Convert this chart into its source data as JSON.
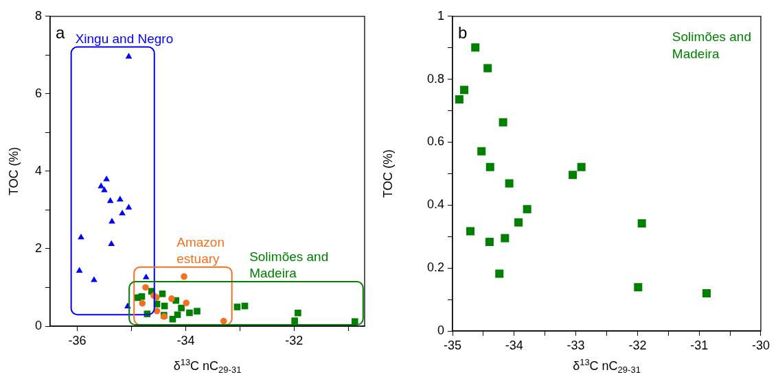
{
  "chart_data": [
    {
      "type": "scatter",
      "title": "a",
      "xlabel": "δ$^{13}$C nC$_{29-31}$",
      "ylabel": "TOC (%)",
      "xlim": [
        -36.5,
        -30.7
      ],
      "xticks": [
        -36,
        {
          "value": -35,
          "label": null
        },
        -34,
        {
          "value": -33,
          "label": null
        },
        -32,
        {
          "value": -31,
          "label": null
        }
      ],
      "ylim": [
        0,
        8
      ],
      "yticks": [
        0,
        {
          "value": 1,
          "label": null
        },
        2,
        {
          "value": 3,
          "label": null
        },
        4,
        {
          "value": 5,
          "label": null
        },
        6,
        {
          "value": 7,
          "label": null
        },
        8
      ],
      "legend": false,
      "series": [
        {
          "name": "Xingu and Negro",
          "color": "#0000ff",
          "marker": "triangle",
          "x": [
            -35.05,
            -35.46,
            -35.56,
            -35.5,
            -35.39,
            -35.21,
            -35.05,
            -35.17,
            -35.36,
            -35.37,
            -35.93,
            -35.96,
            -35.69,
            -34.73,
            -35.07
          ],
          "values": [
            6.96,
            3.79,
            3.61,
            3.51,
            3.23,
            3.27,
            3.06,
            2.91,
            2.7,
            2.12,
            2.29,
            1.43,
            1.19,
            1.26,
            0.51
          ]
        },
        {
          "name": "Amazon estuary",
          "color": "#f5701e",
          "marker": "circle",
          "x": [
            -34.03,
            -34.74,
            -34.59,
            -34.54,
            -34.26,
            -33.99,
            -34.8,
            -34.53,
            -34.4,
            -33.3
          ],
          "values": [
            1.28,
            1.0,
            0.79,
            0.74,
            0.71,
            0.6,
            0.59,
            0.39,
            0.25,
            0.13
          ]
        },
        {
          "name": "Solimões and Madeira",
          "color": "#008000",
          "marker": "square",
          "x": [
            -34.89,
            -34.81,
            -34.63,
            -34.43,
            -34.18,
            -34.53,
            -34.39,
            -34.08,
            -33.05,
            -32.91,
            -33.79,
            -33.93,
            -34.71,
            -34.4,
            -34.15,
            -34.24,
            -31.93,
            -31.99,
            -30.88
          ],
          "values": [
            0.736,
            0.766,
            0.901,
            0.835,
            0.663,
            0.571,
            0.521,
            0.469,
            0.496,
            0.521,
            0.387,
            0.345,
            0.317,
            0.283,
            0.295,
            0.182,
            0.342,
            0.139,
            0.12
          ]
        }
      ]
    },
    {
      "type": "scatter",
      "title": "b",
      "xlabel": "δ$^{13}$C nC$_{29-31}$",
      "ylabel": "TOC (%)",
      "xlim": [
        -35,
        -30
      ],
      "xticks": [
        -35,
        {
          "value": -34.5,
          "label": null
        },
        -34,
        {
          "value": -33.5,
          "label": null
        },
        -33,
        {
          "value": -32.5,
          "label": null
        },
        -32,
        {
          "value": -31.5,
          "label": null
        },
        -31,
        {
          "value": -30.5,
          "label": null
        },
        -30
      ],
      "ylim": [
        0,
        1
      ],
      "yticks": [
        0,
        {
          "value": 0.1,
          "label": null
        },
        0.2,
        {
          "value": 0.3,
          "label": null
        },
        0.4,
        {
          "value": 0.5,
          "label": null
        },
        0.6,
        {
          "value": 0.7,
          "label": null
        },
        0.8,
        {
          "value": 0.9,
          "label": null
        },
        1
      ],
      "legend": false,
      "series": [
        {
          "name": "Solimões and Madeira",
          "color": "#008000",
          "marker": "square",
          "x": [
            -34.89,
            -34.81,
            -34.63,
            -34.43,
            -34.18,
            -34.53,
            -34.39,
            -34.08,
            -33.05,
            -32.91,
            -33.79,
            -33.93,
            -34.71,
            -34.4,
            -34.15,
            -34.24,
            -31.93,
            -31.99,
            -30.88
          ],
          "values": [
            0.736,
            0.766,
            0.901,
            0.835,
            0.663,
            0.571,
            0.521,
            0.469,
            0.496,
            0.521,
            0.387,
            0.345,
            0.317,
            0.283,
            0.295,
            0.182,
            0.342,
            0.139,
            0.12
          ]
        }
      ]
    }
  ]
}
